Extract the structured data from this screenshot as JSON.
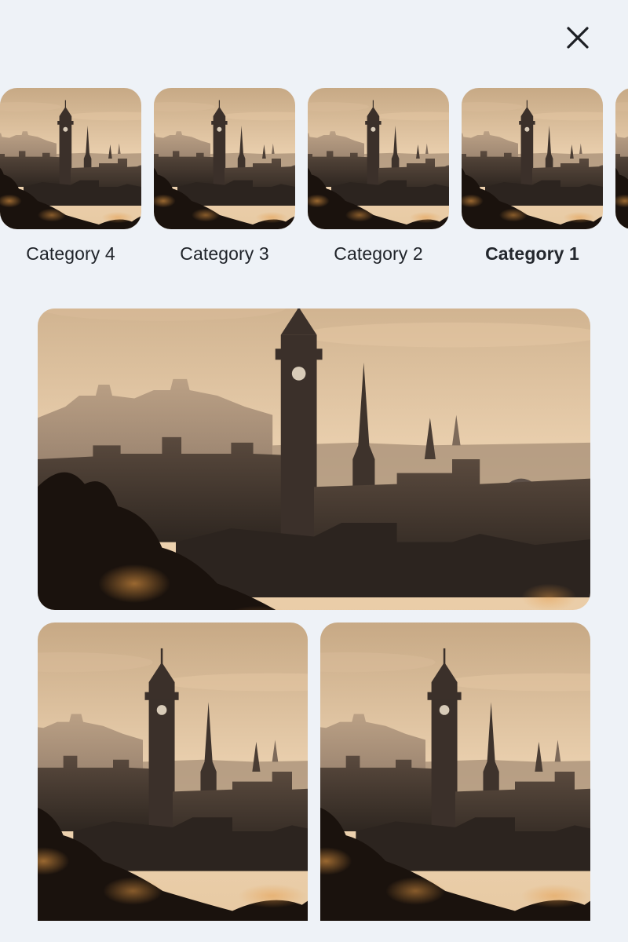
{
  "header": {
    "close_icon": "close-icon"
  },
  "categories": [
    {
      "label": "Category 4",
      "active": false
    },
    {
      "label": "Category 3",
      "active": false
    },
    {
      "label": "Category 2",
      "active": false
    },
    {
      "label": "Category 1",
      "active": true
    }
  ],
  "gallery": {
    "hero": {
      "subject": "city-skyline-at-sunset"
    },
    "tiles": [
      {
        "subject": "city-skyline-at-sunset"
      },
      {
        "subject": "city-skyline-at-sunset"
      }
    ]
  },
  "colors": {
    "background": "#eef2f7",
    "text": "#1f2329",
    "sky_top": "#c9ad8d",
    "sky_bottom": "#f3dcc0",
    "silhouette": "#2b221c"
  }
}
